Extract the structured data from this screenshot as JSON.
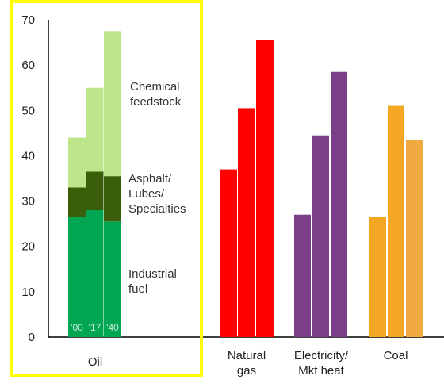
{
  "chart_data": {
    "type": "bar",
    "stacked_group_categories": [
      "'00",
      "'17",
      "'40"
    ],
    "ylim": [
      0,
      70
    ],
    "yticks": [
      0,
      10,
      20,
      30,
      40,
      50,
      60,
      70
    ],
    "grid": false,
    "highlight_color": "#ffff00",
    "groups": [
      {
        "label": "Oil",
        "stacked": true,
        "categories": [
          "'00",
          "'17",
          "'40"
        ],
        "series": [
          {
            "name": "Industrial fuel",
            "color": "#00a651",
            "values": [
              26.5,
              28,
              25.5
            ]
          },
          {
            "name": "Asphalt/ Lubes/ Specialties",
            "color": "#3b5e0b",
            "values": [
              6.5,
              8.5,
              10
            ]
          },
          {
            "name": "Chemical feedstock",
            "color": "#bde58a",
            "values": [
              11,
              18.5,
              32
            ]
          }
        ],
        "series_labels": [
          [
            "Industrial",
            "fuel"
          ],
          [
            "Asphalt/",
            "Lubes/",
            "Specialties"
          ],
          [
            "Chemical",
            "feedstock"
          ]
        ]
      },
      {
        "label_lines": [
          "Natural",
          "gas"
        ],
        "color": "#ff0000",
        "values": [
          37,
          50.5,
          65.5
        ]
      },
      {
        "label_lines": [
          "Electricity/",
          "Mkt heat"
        ],
        "color": "#7b3f8a",
        "values": [
          27,
          44.5,
          58.5
        ]
      },
      {
        "label_lines": [
          "Coal"
        ],
        "color": "#f5a623",
        "colors": [
          "#f5a623",
          "#f5a623",
          "#f0a840"
        ],
        "values": [
          26.5,
          51,
          43.5
        ]
      }
    ]
  }
}
